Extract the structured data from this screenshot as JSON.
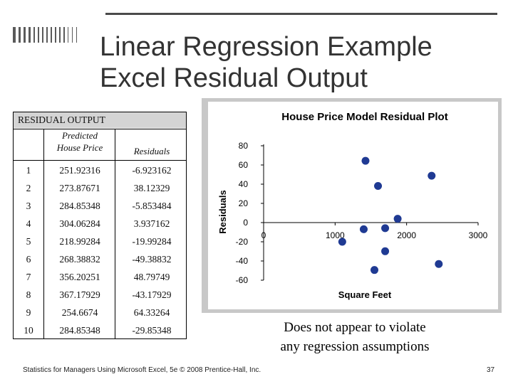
{
  "slide": {
    "title_line1": "Linear Regression Example",
    "title_line2": "Excel Residual Output",
    "footer": "Statistics for Managers Using Microsoft Excel, 5e © 2008 Prentice-Hall, Inc.",
    "page_number": "37",
    "note_line1": "Does not appear to violate",
    "note_line2": "any regression assumptions"
  },
  "residual_table": {
    "heading": "RESIDUAL OUTPUT",
    "col_pred_line1": "Predicted",
    "col_pred_line2": "House Price",
    "col_resid": "Residuals",
    "rows": [
      {
        "obs": "1",
        "predicted": "251.92316",
        "residual": "-6.923162"
      },
      {
        "obs": "2",
        "predicted": "273.87671",
        "residual": "38.12329"
      },
      {
        "obs": "3",
        "predicted": "284.85348",
        "residual": "-5.853484"
      },
      {
        "obs": "4",
        "predicted": "304.06284",
        "residual": "3.937162"
      },
      {
        "obs": "5",
        "predicted": "218.99284",
        "residual": "-19.99284"
      },
      {
        "obs": "6",
        "predicted": "268.38832",
        "residual": "-49.38832"
      },
      {
        "obs": "7",
        "predicted": "356.20251",
        "residual": "48.79749"
      },
      {
        "obs": "8",
        "predicted": "367.17929",
        "residual": "-43.17929"
      },
      {
        "obs": "9",
        "predicted": "254.6674",
        "residual": "64.33264"
      },
      {
        "obs": "10",
        "predicted": "284.85348",
        "residual": "-29.85348"
      }
    ]
  },
  "chart_data": {
    "type": "scatter",
    "title": "House Price Model Residual Plot",
    "xlabel": "Square Feet",
    "ylabel": "Residuals",
    "xlim": [
      0,
      3000
    ],
    "ylim": [
      -60,
      80
    ],
    "x_ticks": [
      "0",
      "1000",
      "2000",
      "3000"
    ],
    "y_ticks": [
      "80",
      "60",
      "40",
      "20",
      "0",
      "-20",
      "-40",
      "-60"
    ],
    "grid": false,
    "legend": "none",
    "marker_color": "#1f3a93",
    "series": [
      {
        "x": [
          1400,
          1600,
          1700,
          1875,
          1100,
          1550,
          2350,
          2450,
          1425,
          1700
        ],
        "y": [
          -6.923162,
          38.12329,
          -5.853484,
          3.937162,
          -19.99284,
          -49.38832,
          48.79749,
          -43.17929,
          64.33264,
          -29.85348
        ]
      }
    ]
  }
}
